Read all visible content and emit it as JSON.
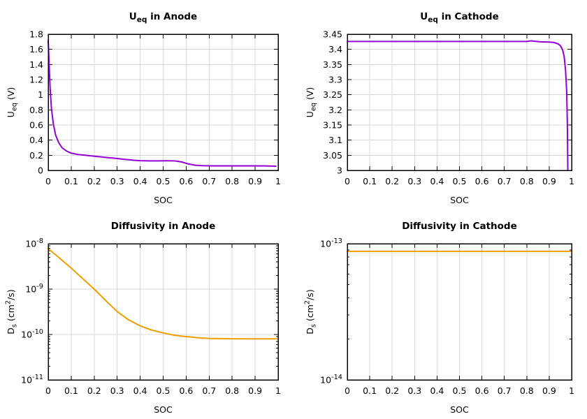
{
  "figure": {
    "background": "#ffffff",
    "grid_color": "#d9d9d9",
    "axis_color": "#000000",
    "text_color": "#000000"
  },
  "chart_data": [
    {
      "id": "ueq-anode",
      "type": "line",
      "title": [
        [
          "U",
          ""
        ],
        [
          "eq",
          "sub"
        ],
        [
          " in Anode",
          ""
        ]
      ],
      "xlabel": "SOC",
      "ylabel": [
        [
          "U",
          ""
        ],
        [
          "eq",
          "sub"
        ],
        [
          " (V)",
          ""
        ]
      ],
      "line_color": "#9400d3",
      "yscale": "linear",
      "xlim": [
        0,
        1
      ],
      "ylim": [
        0,
        1.8
      ],
      "xtick_values": [
        0,
        0.1,
        0.2,
        0.3,
        0.4,
        0.5,
        0.6,
        0.7,
        0.8,
        0.9,
        1
      ],
      "xtick_labels": [
        "0",
        "0.1",
        "0.2",
        "0.3",
        "0.4",
        "0.5",
        "0.6",
        "0.7",
        "0.8",
        "0.9",
        "1"
      ],
      "ytick_values": [
        0,
        0.2,
        0.4,
        0.6,
        0.8,
        1,
        1.2,
        1.4,
        1.6,
        1.8
      ],
      "ytick_labels": [
        "0",
        "0.2",
        "0.4",
        "0.6",
        "0.8",
        "1",
        "1.2",
        "1.4",
        "1.6",
        "1.8"
      ],
      "grid": true,
      "x": [
        0,
        0.004,
        0.008,
        0.014,
        0.022,
        0.032,
        0.045,
        0.06,
        0.08,
        0.1,
        0.13,
        0.17,
        0.21,
        0.25,
        0.29,
        0.33,
        0.37,
        0.4,
        0.44,
        0.48,
        0.52,
        0.55,
        0.58,
        0.61,
        0.64,
        0.67,
        0.72,
        0.78,
        0.84,
        0.9,
        0.95,
        0.99
      ],
      "y": [
        1.72,
        1.4,
        1.1,
        0.82,
        0.62,
        0.47,
        0.37,
        0.3,
        0.255,
        0.228,
        0.21,
        0.197,
        0.185,
        0.172,
        0.16,
        0.147,
        0.135,
        0.128,
        0.126,
        0.126,
        0.127,
        0.126,
        0.112,
        0.085,
        0.068,
        0.062,
        0.06,
        0.06,
        0.06,
        0.06,
        0.059,
        0.055
      ]
    },
    {
      "id": "ueq-cathode",
      "type": "line",
      "title": [
        [
          "U",
          ""
        ],
        [
          "eq",
          "sub"
        ],
        [
          " in Cathode",
          ""
        ]
      ],
      "xlabel": "SOC",
      "ylabel": [
        [
          "U",
          ""
        ],
        [
          "eq",
          "sub"
        ],
        [
          " (V)",
          ""
        ]
      ],
      "line_color": "#9400d3",
      "yscale": "linear",
      "xlim": [
        0,
        1
      ],
      "ylim": [
        3,
        3.45
      ],
      "xtick_values": [
        0,
        0.1,
        0.2,
        0.3,
        0.4,
        0.5,
        0.6,
        0.7,
        0.8,
        0.9,
        1
      ],
      "xtick_labels": [
        "0",
        "0.1",
        "0.2",
        "0.3",
        "0.4",
        "0.5",
        "0.6",
        "0.7",
        "0.8",
        "0.9",
        "1"
      ],
      "ytick_values": [
        3,
        3.05,
        3.1,
        3.15,
        3.2,
        3.25,
        3.3,
        3.35,
        3.4,
        3.45
      ],
      "ytick_labels": [
        "3",
        "3.05",
        "3.1",
        "3.15",
        "3.2",
        "3.25",
        "3.3",
        "3.35",
        "3.4",
        "3.45"
      ],
      "grid": true,
      "x": [
        0,
        0.1,
        0.2,
        0.3,
        0.4,
        0.5,
        0.6,
        0.7,
        0.8,
        0.82,
        0.86,
        0.9,
        0.92,
        0.94,
        0.95,
        0.96,
        0.967,
        0.973,
        0.978,
        0.981,
        0.983
      ],
      "y": [
        3.426,
        3.426,
        3.426,
        3.426,
        3.426,
        3.426,
        3.426,
        3.426,
        3.426,
        3.428,
        3.425,
        3.424,
        3.423,
        3.418,
        3.412,
        3.398,
        3.375,
        3.33,
        3.26,
        3.15,
        3.0
      ]
    },
    {
      "id": "diffusivity-anode",
      "type": "line",
      "title": [
        [
          "Diffusivity in Anode",
          ""
        ]
      ],
      "xlabel": "SOC",
      "ylabel": [
        [
          "D",
          ""
        ],
        [
          "s",
          "sub"
        ],
        [
          " (cm",
          ""
        ],
        [
          "2",
          "sup"
        ],
        [
          "/s)",
          ""
        ]
      ],
      "line_color": "#ed9f00",
      "yscale": "log",
      "xlim": [
        0,
        1
      ],
      "ylim": [
        1e-11,
        1e-08
      ],
      "xtick_values": [
        0,
        0.1,
        0.2,
        0.3,
        0.4,
        0.5,
        0.6,
        0.7,
        0.8,
        0.9,
        1
      ],
      "xtick_labels": [
        "0",
        "0.1",
        "0.2",
        "0.3",
        "0.4",
        "0.5",
        "0.6",
        "0.7",
        "0.8",
        "0.9",
        "1"
      ],
      "ytick_values": [
        1e-11,
        1e-10,
        1e-09,
        1e-08
      ],
      "ytick_labels": [
        [
          [
            "10",
            ""
          ],
          [
            "-11",
            "sup"
          ]
        ],
        [
          [
            "10",
            ""
          ],
          [
            "-10",
            "sup"
          ]
        ],
        [
          [
            "10",
            ""
          ],
          [
            "-9",
            "sup"
          ]
        ],
        [
          [
            "10",
            ""
          ],
          [
            "-8",
            "sup"
          ]
        ]
      ],
      "grid": true,
      "x": [
        0,
        0.05,
        0.1,
        0.15,
        0.2,
        0.25,
        0.3,
        0.35,
        0.4,
        0.45,
        0.5,
        0.55,
        0.6,
        0.65,
        0.7,
        0.8,
        0.9,
        1.0
      ],
      "y": [
        7.8e-09,
        4.8e-09,
        2.9e-09,
        1.7e-09,
        1e-09,
        5.6e-10,
        3.2e-10,
        2.1e-10,
        1.55e-10,
        1.25e-10,
        1.08e-10,
        9.6e-11,
        9e-11,
        8.5e-11,
        8.2e-11,
        8.05e-11,
        8e-11,
        8e-11
      ]
    },
    {
      "id": "diffusivity-cathode",
      "type": "line",
      "title": [
        [
          "Diffusivity in Cathode",
          ""
        ]
      ],
      "xlabel": "SOC",
      "ylabel": [
        [
          "D",
          ""
        ],
        [
          "s",
          "sub"
        ],
        [
          " (cm",
          ""
        ],
        [
          "2",
          "sup"
        ],
        [
          "/s)",
          ""
        ]
      ],
      "line_color": "#ed9f00",
      "yscale": "log",
      "xlim": [
        0,
        1
      ],
      "ylim": [
        1e-14,
        1e-13
      ],
      "xtick_values": [
        0,
        0.1,
        0.2,
        0.3,
        0.4,
        0.5,
        0.6,
        0.7,
        0.8,
        0.9,
        1
      ],
      "xtick_labels": [
        "0",
        "0.1",
        "0.2",
        "0.3",
        "0.4",
        "0.5",
        "0.6",
        "0.7",
        "0.8",
        "0.9",
        "1"
      ],
      "ytick_values": [
        1e-14,
        1e-13
      ],
      "ytick_labels": [
        [
          [
            "10",
            ""
          ],
          [
            "-14",
            "sup"
          ]
        ],
        [
          [
            "10",
            ""
          ],
          [
            "-13",
            "sup"
          ]
        ]
      ],
      "grid": true,
      "x": [
        0,
        1
      ],
      "y": [
        8.8e-14,
        8.8e-14
      ]
    }
  ]
}
